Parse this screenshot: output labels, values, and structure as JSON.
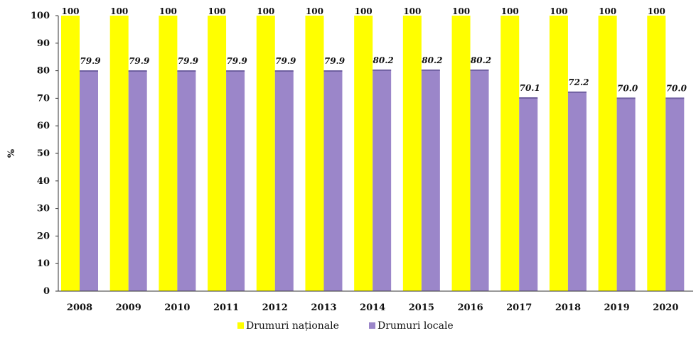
{
  "chart_data": {
    "type": "bar",
    "categories": [
      "2008",
      "2009",
      "2010",
      "2011",
      "2012",
      "2013",
      "2014",
      "2015",
      "2016",
      "2017",
      "2018",
      "2019",
      "2020"
    ],
    "series": [
      {
        "name": "Drumuri naționale",
        "color": "#ffff00",
        "values": [
          100,
          100,
          100,
          100,
          100,
          100,
          100,
          100,
          100,
          100,
          100,
          100,
          100
        ],
        "labels": [
          "100",
          "100",
          "100",
          "100",
          "100",
          "100",
          "100",
          "100",
          "100",
          "100",
          "100",
          "100",
          "100"
        ]
      },
      {
        "name": "Drumuri locale",
        "color": "#9b86c9",
        "values": [
          79.9,
          79.9,
          79.9,
          79.9,
          79.9,
          79.9,
          80.2,
          80.2,
          80.2,
          70.1,
          72.2,
          70.0,
          70.0
        ],
        "labels": [
          "79.9",
          "79.9",
          "79.9",
          "79.9",
          "79.9",
          "79.9",
          "80.2",
          "80.2",
          "80.2",
          "70.1",
          "72.2",
          "70.0",
          "70.0"
        ]
      }
    ],
    "ylabel": "%",
    "xlabel": "",
    "ylim": [
      0,
      100
    ],
    "yticks": [
      "0",
      "10",
      "20",
      "30",
      "40",
      "50",
      "60",
      "70",
      "80",
      "90",
      "100"
    ],
    "grid": false,
    "legend": "bottom"
  }
}
